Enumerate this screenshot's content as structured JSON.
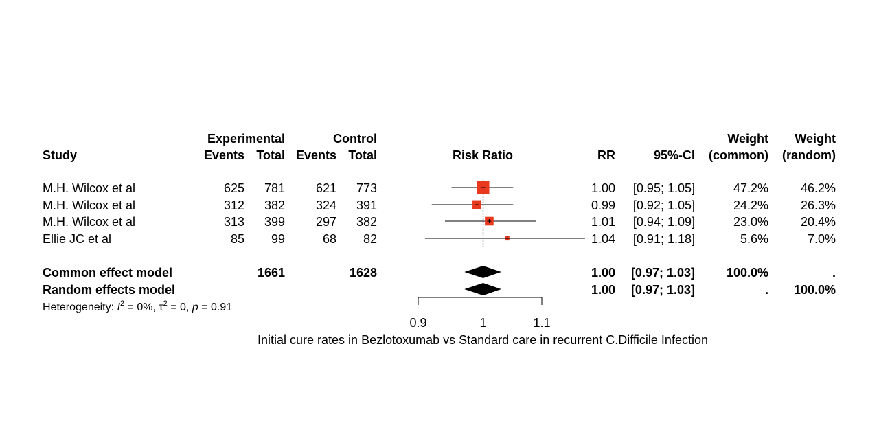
{
  "chart_data": {
    "type": "forest",
    "columns": {
      "study": "Study",
      "experimental": "Experimental",
      "control": "Control",
      "events": "Events",
      "total": "Total",
      "risk_ratio": "Risk Ratio",
      "rr": "RR",
      "ci": "95%-CI",
      "weight": "Weight",
      "weight_common": "(common)",
      "weight_random": "(random)"
    },
    "studies": [
      {
        "name": "M.H. Wilcox et al",
        "e_events": "625",
        "e_total": "781",
        "c_events": "621",
        "c_total": "773",
        "rr": 1.0,
        "lo": 0.95,
        "hi": 1.05,
        "rr_text": "1.00",
        "ci_text": "[0.95; 1.05]",
        "w_common": "47.2%",
        "w_random": "46.2%",
        "weight": 47.2
      },
      {
        "name": "M.H. Wilcox et al",
        "e_events": "312",
        "e_total": "382",
        "c_events": "324",
        "c_total": "391",
        "rr": 0.99,
        "lo": 0.92,
        "hi": 1.05,
        "rr_text": "0.99",
        "ci_text": "[0.92; 1.05]",
        "w_common": "24.2%",
        "w_random": "26.3%",
        "weight": 24.2
      },
      {
        "name": "M.H. Wilcox et al",
        "e_events": "313",
        "e_total": "399",
        "c_events": "297",
        "c_total": "382",
        "rr": 1.01,
        "lo": 0.94,
        "hi": 1.09,
        "rr_text": "1.01",
        "ci_text": "[0.94; 1.09]",
        "w_common": "23.0%",
        "w_random": "20.4%",
        "weight": 23.0
      },
      {
        "name": "Ellie JC et al",
        "e_events": "85",
        "e_total": "99",
        "c_events": "68",
        "c_total": "82",
        "rr": 1.04,
        "lo": 0.91,
        "hi": 1.18,
        "rr_text": "1.04",
        "ci_text": "[0.91; 1.18]",
        "w_common": "5.6%",
        "w_random": "7.0%",
        "weight": 5.6
      }
    ],
    "summary": [
      {
        "name": "Common effect model",
        "e_total": "1661",
        "c_total": "1628",
        "rr": 1.0,
        "lo": 0.97,
        "hi": 1.03,
        "rr_text": "1.00",
        "ci_text": "[0.97; 1.03]",
        "w_common": "100.0%",
        "w_random": "."
      },
      {
        "name": "Random effects model",
        "e_total": "",
        "c_total": "",
        "rr": 1.0,
        "lo": 0.97,
        "hi": 1.03,
        "rr_text": "1.00",
        "ci_text": "[0.97; 1.03]",
        "w_common": ".",
        "w_random": "100.0%"
      }
    ],
    "heterogeneity": {
      "prefix": "Heterogeneity: ",
      "i2_symbol": "I",
      "i2_value": " = 0%, ",
      "tau_symbol": "τ",
      "tau_value": " = 0, ",
      "p_symbol": "p",
      "p_value": " = 0.91",
      "superscript": "2"
    },
    "x_axis": {
      "ticks": [
        0.9,
        1,
        1.1
      ],
      "tick_labels": [
        "0.9",
        "1",
        "1.1"
      ],
      "range": [
        0.9,
        1.1
      ],
      "scale": "log",
      "reference_line": 1
    },
    "xlabel": "Initial cure rates in Bezlotoxumab vs Standard care in recurrent C.Difficile Infection",
    "colors": {
      "box": "#e8391f",
      "diamond": "#000000",
      "line": "#000000"
    }
  }
}
